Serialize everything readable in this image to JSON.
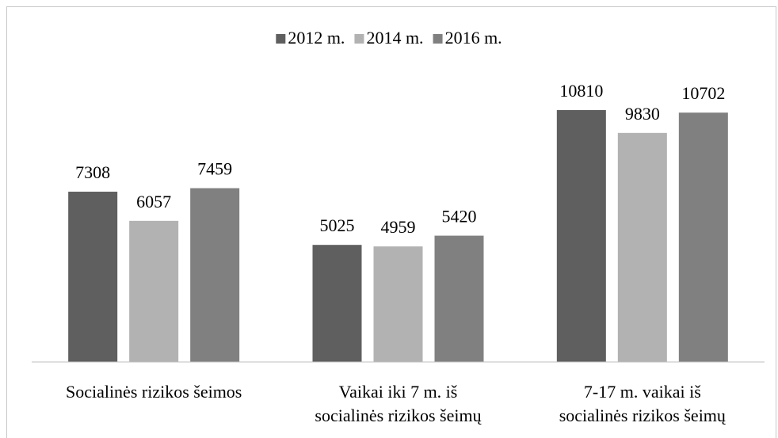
{
  "chart_data": {
    "type": "bar",
    "categories": [
      [
        "Socialinės rizikos šeimos"
      ],
      [
        "Vaikai iki 7 m. iš",
        "socialinės rizikos šeimų"
      ],
      [
        "7-17 m. vaikai iš",
        "socialinės rizikos šeimų"
      ]
    ],
    "series": [
      {
        "name": "2012 m.",
        "color": "#5f5f5f",
        "values": [
          7308,
          5025,
          10810
        ]
      },
      {
        "name": "2014 m.",
        "color": "#b2b2b2",
        "values": [
          6057,
          4959,
          9830
        ]
      },
      {
        "name": "2016 m.",
        "color": "#808080",
        "values": [
          7459,
          5420,
          10702
        ]
      }
    ],
    "ylim": [
      0,
      12000
    ],
    "legend": "top"
  }
}
